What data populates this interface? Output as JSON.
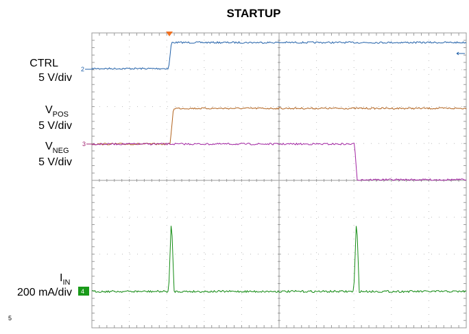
{
  "title": "STARTUP",
  "channels": [
    {
      "name": "CTRL",
      "scale": "5 V/div",
      "marker": "2"
    },
    {
      "name": "V",
      "sub": "POS",
      "scale": "5 V/div"
    },
    {
      "name": "V",
      "sub": "NEG",
      "scale": "5 V/div",
      "marker": "3"
    },
    {
      "name": "I",
      "sub": "IN",
      "scale": "200 mA/div",
      "marker": "4"
    }
  ],
  "footnote": "5"
}
